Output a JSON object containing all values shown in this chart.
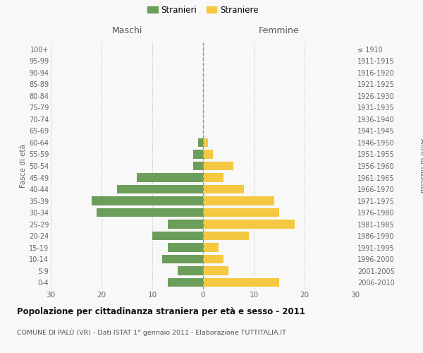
{
  "age_groups": [
    "0-4",
    "5-9",
    "10-14",
    "15-19",
    "20-24",
    "25-29",
    "30-34",
    "35-39",
    "40-44",
    "45-49",
    "50-54",
    "55-59",
    "60-64",
    "65-69",
    "70-74",
    "75-79",
    "80-84",
    "85-89",
    "90-94",
    "95-99",
    "100+"
  ],
  "birth_years": [
    "2006-2010",
    "2001-2005",
    "1996-2000",
    "1991-1995",
    "1986-1990",
    "1981-1985",
    "1976-1980",
    "1971-1975",
    "1966-1970",
    "1961-1965",
    "1956-1960",
    "1951-1955",
    "1946-1950",
    "1941-1945",
    "1936-1940",
    "1931-1935",
    "1926-1930",
    "1921-1925",
    "1916-1920",
    "1911-1915",
    "≤ 1910"
  ],
  "males": [
    7,
    5,
    8,
    7,
    10,
    7,
    21,
    22,
    17,
    13,
    2,
    2,
    1,
    0,
    0,
    0,
    0,
    0,
    0,
    0,
    0
  ],
  "females": [
    15,
    5,
    4,
    3,
    9,
    18,
    15,
    14,
    8,
    4,
    6,
    2,
    1,
    0,
    0,
    0,
    0,
    0,
    0,
    0,
    0
  ],
  "male_color": "#6a9e5a",
  "female_color": "#f5c842",
  "background_color": "#f8f8f8",
  "grid_color": "#cccccc",
  "title": "Popolazione per cittadinanza straniera per età e sesso - 2011",
  "subtitle": "COMUNE DI PALÙ (VR) - Dati ISTAT 1° gennaio 2011 - Elaborazione TUTTITALIA.IT",
  "ylabel_left": "Fasce di età",
  "ylabel_right": "Anni di nascita",
  "xlabel_left": "Maschi",
  "xlabel_right": "Femmine",
  "legend_male": "Stranieri",
  "legend_female": "Straniere",
  "xlim": 30,
  "dashed_line_color": "#aaaaaa"
}
